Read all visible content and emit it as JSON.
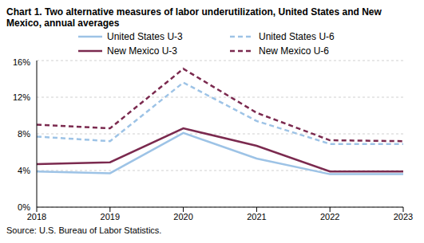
{
  "chart_data": {
    "type": "line",
    "title": "Chart 1. Two alternative measures of labor underutilization, United States and New Mexico, annual averages",
    "source": "Source: U.S. Bureau of Labor Statistics.",
    "categories": [
      "2018",
      "2019",
      "2020",
      "2021",
      "2022",
      "2023"
    ],
    "series": [
      {
        "name": "United States U-3",
        "color": "#9dc3e6",
        "line_style": "solid",
        "values": [
          3.9,
          3.7,
          8.1,
          5.3,
          3.6,
          3.6
        ]
      },
      {
        "name": "United States U-6",
        "color": "#9dc3e6",
        "line_style": "dashed",
        "values": [
          7.7,
          7.2,
          13.6,
          9.4,
          6.9,
          6.9
        ]
      },
      {
        "name": "New Mexico U-3",
        "color": "#7b2a4f",
        "line_style": "solid",
        "values": [
          4.7,
          4.9,
          8.6,
          6.7,
          3.9,
          3.9
        ]
      },
      {
        "name": "New Mexico U-6",
        "color": "#7b2a4f",
        "line_style": "dashed",
        "values": [
          9.0,
          8.6,
          15.1,
          10.3,
          7.3,
          7.2
        ]
      }
    ],
    "ylim": [
      0,
      16
    ],
    "yticks": [
      {
        "value": 0,
        "label": "0%"
      },
      {
        "value": 4,
        "label": "4%"
      },
      {
        "value": 8,
        "label": "8%"
      },
      {
        "value": 12,
        "label": "12%"
      },
      {
        "value": 16,
        "label": "16%"
      }
    ],
    "grid": true,
    "legend": "top"
  }
}
